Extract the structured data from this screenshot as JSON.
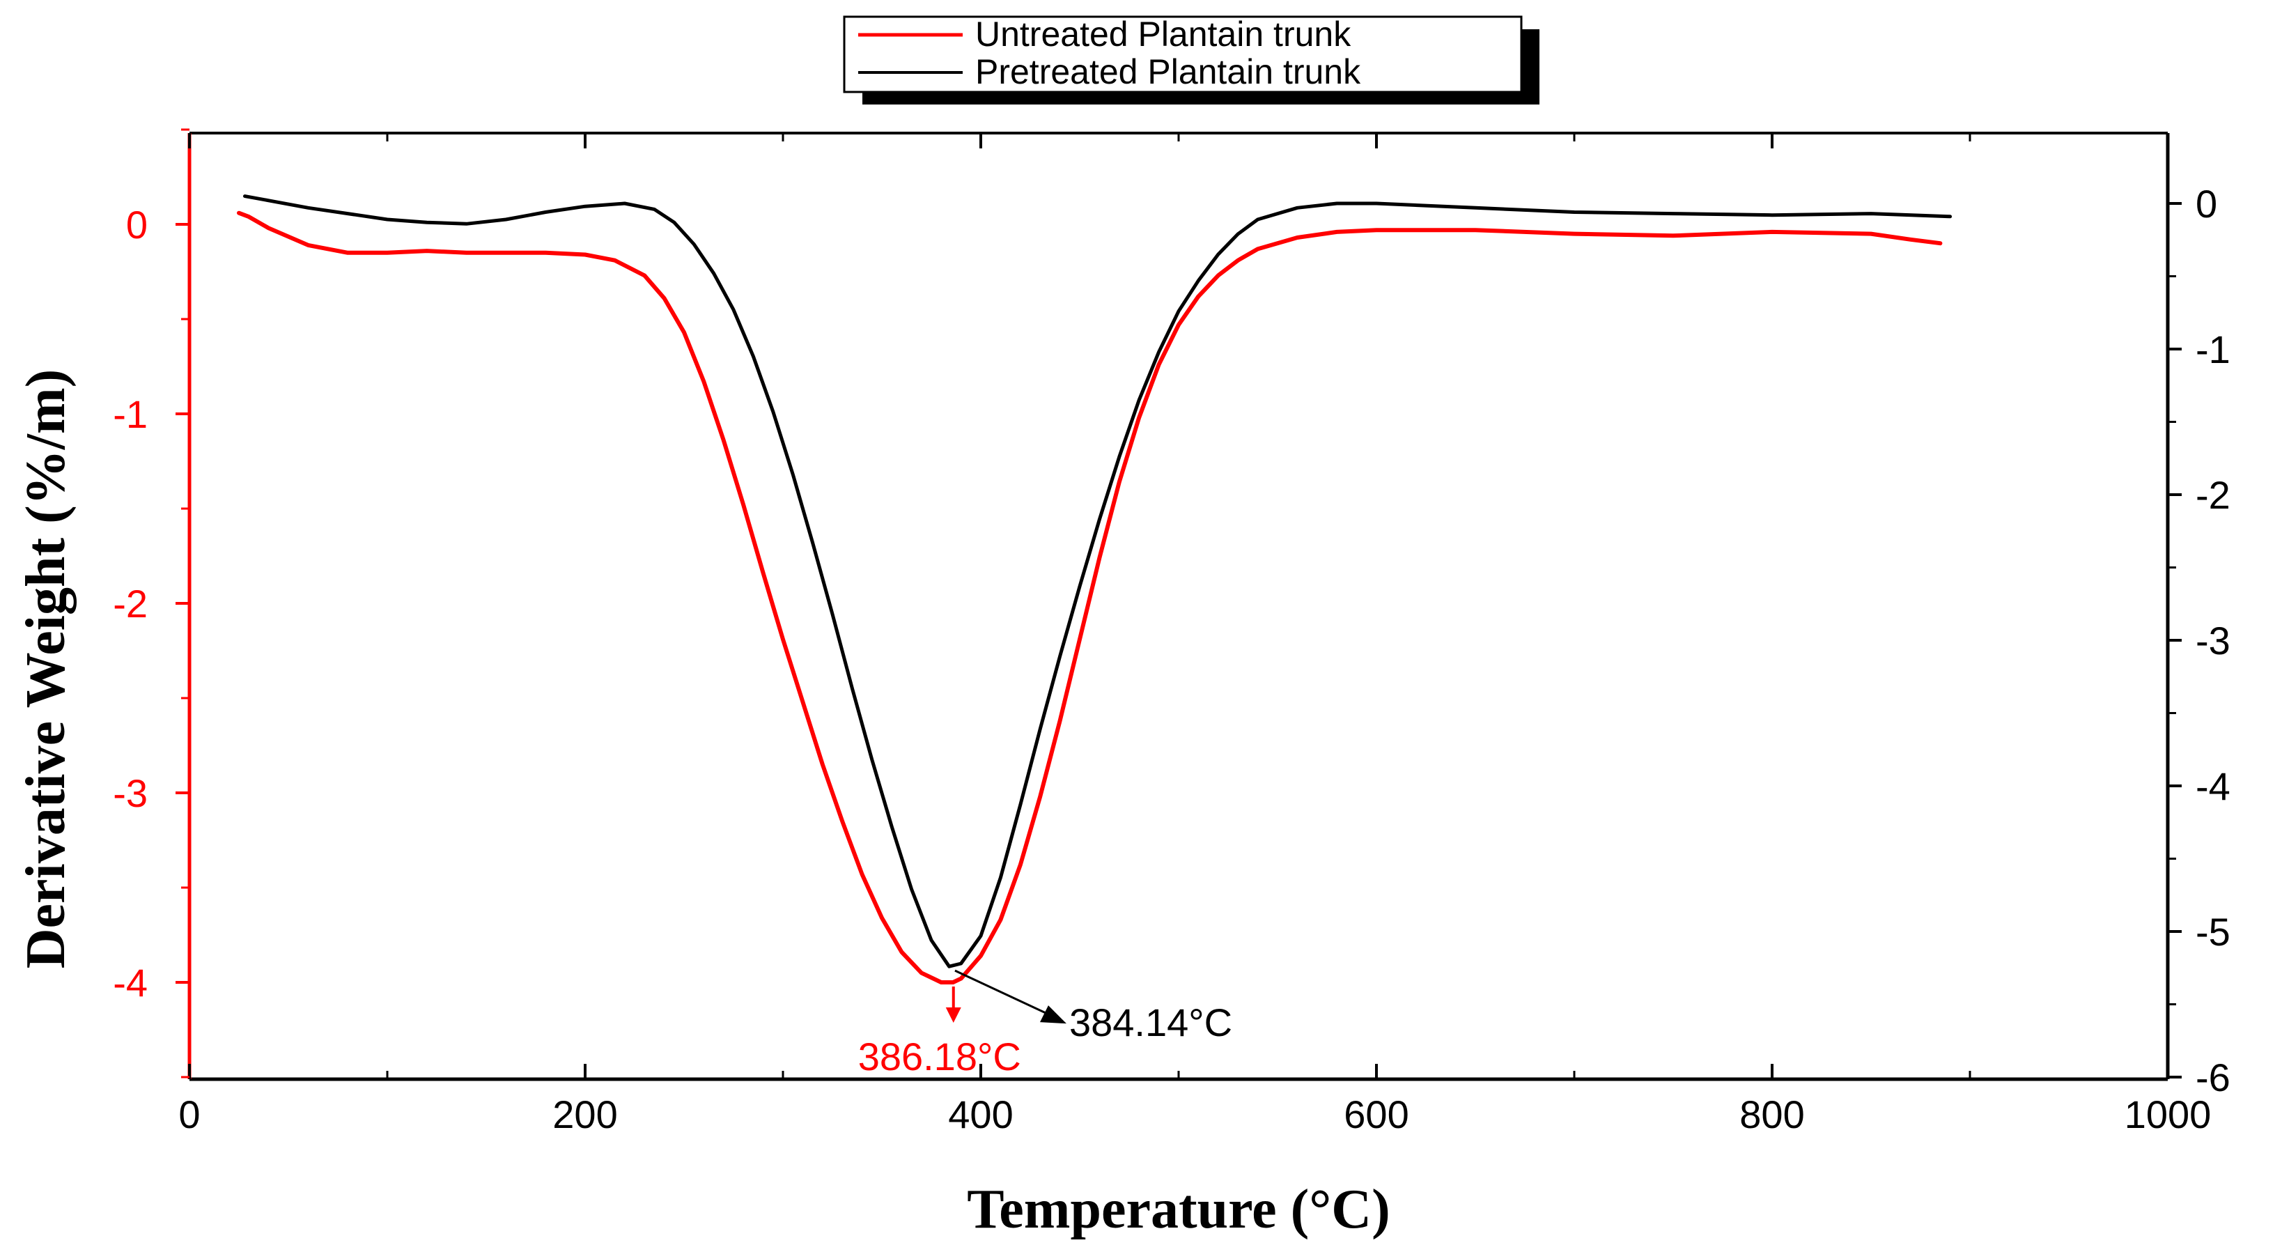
{
  "chart_data": {
    "type": "line",
    "xlabel": "Temperature (°C)",
    "ylabel": "Derivative Weight (%/m)",
    "xlim": [
      0,
      1000
    ],
    "ylim_left": [
      -4.5,
      0.5
    ],
    "ylim_right": [
      -6,
      0.5
    ],
    "x_ticks": [
      "0",
      "200",
      "400",
      "600",
      "800",
      "1000"
    ],
    "y_ticks_left": [
      "0",
      "-1",
      "-2",
      "-3",
      "-4"
    ],
    "y_ticks_right": [
      "0",
      "-1",
      "-2",
      "-3",
      "-4",
      "-5",
      "-6"
    ],
    "colors": {
      "untreated": "#ff0000",
      "pretreated": "#000000",
      "left_axis": "#ff0000",
      "right_axis": "#000000"
    },
    "series": [
      {
        "name": "Untreated Plantain trunk",
        "axis": "left",
        "x": [
          25,
          30,
          40,
          60,
          80,
          100,
          120,
          140,
          160,
          180,
          200,
          215,
          230,
          240,
          250,
          260,
          270,
          280,
          290,
          300,
          310,
          320,
          330,
          340,
          350,
          360,
          370,
          380,
          386,
          390,
          400,
          410,
          420,
          430,
          440,
          450,
          460,
          470,
          480,
          490,
          500,
          510,
          520,
          530,
          540,
          560,
          580,
          600,
          650,
          700,
          750,
          800,
          850,
          870,
          885
        ],
        "y": [
          0.06,
          0.04,
          -0.02,
          -0.11,
          -0.15,
          -0.15,
          -0.14,
          -0.15,
          -0.15,
          -0.15,
          -0.16,
          -0.19,
          -0.27,
          -0.39,
          -0.57,
          -0.83,
          -1.14,
          -1.48,
          -1.84,
          -2.19,
          -2.52,
          -2.85,
          -3.15,
          -3.43,
          -3.66,
          -3.84,
          -3.95,
          -4.0,
          -4.0,
          -3.98,
          -3.86,
          -3.67,
          -3.38,
          -3.02,
          -2.62,
          -2.19,
          -1.76,
          -1.36,
          -1.02,
          -0.74,
          -0.53,
          -0.38,
          -0.27,
          -0.19,
          -0.13,
          -0.07,
          -0.04,
          -0.03,
          -0.03,
          -0.05,
          -0.06,
          -0.04,
          -0.05,
          -0.08,
          -0.1
        ]
      },
      {
        "name": "Pretreated Plantain trunk",
        "axis": "right",
        "x": [
          28,
          40,
          60,
          80,
          100,
          120,
          140,
          160,
          180,
          200,
          220,
          235,
          245,
          255,
          265,
          275,
          285,
          295,
          305,
          315,
          325,
          335,
          345,
          355,
          365,
          375,
          384,
          390,
          400,
          410,
          420,
          430,
          440,
          450,
          460,
          470,
          480,
          490,
          500,
          510,
          520,
          530,
          540,
          560,
          580,
          600,
          650,
          700,
          750,
          800,
          850,
          890
        ],
        "y": [
          0.05,
          0.02,
          -0.03,
          -0.07,
          -0.11,
          -0.13,
          -0.14,
          -0.11,
          -0.06,
          -0.02,
          0.0,
          -0.04,
          -0.13,
          -0.28,
          -0.48,
          -0.73,
          -1.05,
          -1.43,
          -1.86,
          -2.33,
          -2.82,
          -3.33,
          -3.82,
          -4.28,
          -4.71,
          -5.06,
          -5.24,
          -5.22,
          -5.03,
          -4.63,
          -4.13,
          -3.61,
          -3.11,
          -2.63,
          -2.17,
          -1.74,
          -1.35,
          -1.02,
          -0.74,
          -0.53,
          -0.35,
          -0.21,
          -0.11,
          -0.03,
          0.0,
          0.0,
          -0.03,
          -0.06,
          -0.07,
          -0.08,
          -0.07,
          -0.09
        ]
      }
    ],
    "annotations": [
      {
        "text": "386.18°C",
        "x": 386.18,
        "series": "Untreated Plantain trunk"
      },
      {
        "text": "384.14°C",
        "x": 384.14,
        "series": "Pretreated Plantain trunk"
      }
    ],
    "legend": {
      "position": "top-center"
    }
  }
}
